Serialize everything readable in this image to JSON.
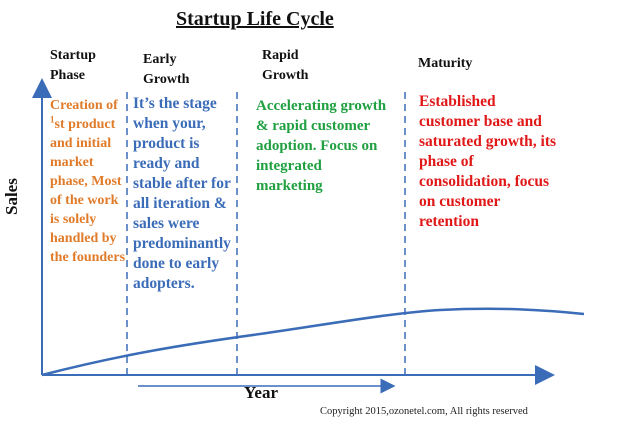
{
  "title": "Startup Life Cycle",
  "axes": {
    "y_label": "Sales",
    "x_label": "Year"
  },
  "phases": [
    {
      "name_line1": "Startup",
      "name_line2": "Phase",
      "desc_lines": [
        "Creation of",
        "1",
        "st product",
        "and initial",
        "market",
        "phase, Most",
        "of the work",
        "is solely",
        "handled by",
        "the founders"
      ],
      "color": "#e07b2a"
    },
    {
      "name_line1": "Early",
      "name_line2": "Growth",
      "desc_lines": [
        "It’s the stage",
        "when your,",
        "product is",
        "ready and",
        "stable after for",
        "all iteration  &",
        "sales were",
        "predominantly",
        "done to  early",
        "adopters."
      ],
      "color": "#3b6cb8"
    },
    {
      "name_line1": "Rapid",
      "name_line2": "Growth",
      "desc_lines": [
        "Accelerating growth",
        "& rapid customer",
        "adoption. Focus on",
        "integrated",
        "marketing"
      ],
      "color": "#20a040"
    },
    {
      "name_line1": "Maturity",
      "name_line2": "",
      "desc_lines": [
        "Established",
        "customer base and",
        "saturated growth, its",
        "phase of",
        "consolidation, focus",
        "on customer",
        "retention"
      ],
      "color": "#e01818"
    }
  ],
  "copyright": "Copyright 2015,ozonetel.com, All rights reserved",
  "colors": {
    "axis": "#3b6cb8",
    "curve": "#3b6cb8",
    "divider": "#3b6cb8"
  }
}
